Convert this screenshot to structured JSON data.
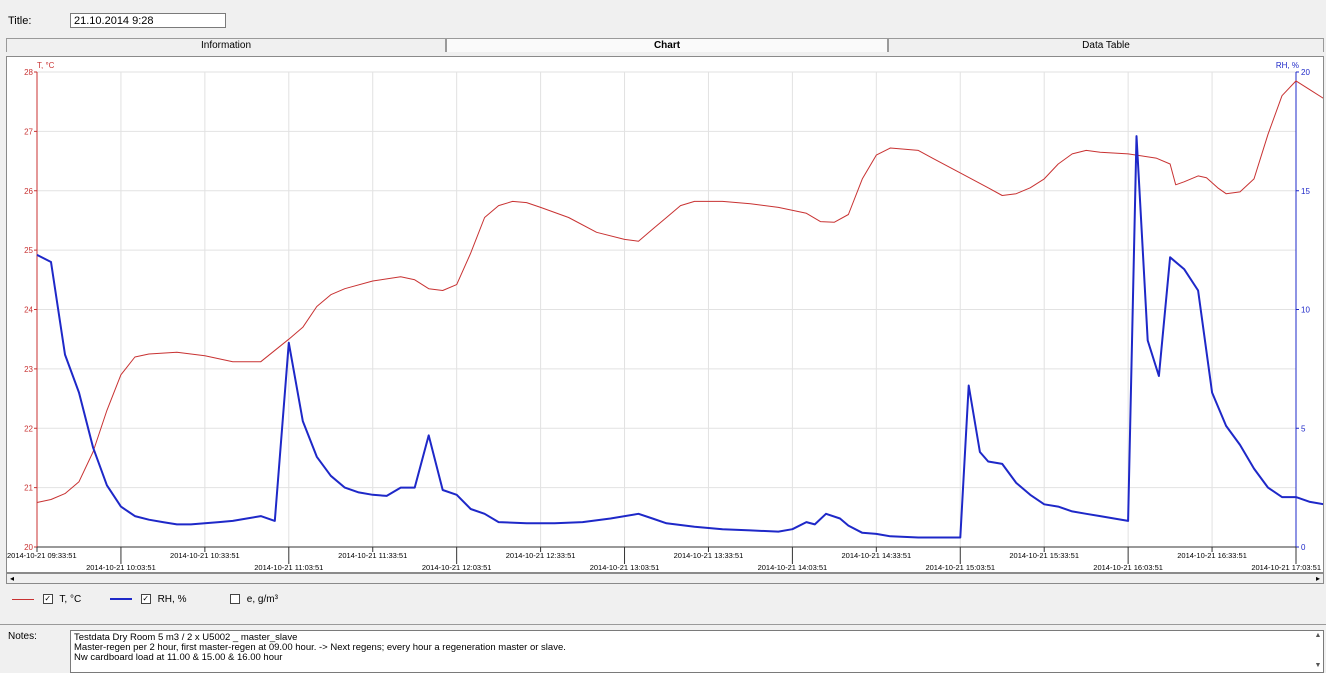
{
  "title": {
    "label": "Title:",
    "value": "21.10.2014 9:28"
  },
  "tabs": [
    {
      "label": "Information",
      "active": false
    },
    {
      "label": "Chart",
      "active": true
    },
    {
      "label": "Data Table",
      "active": false
    }
  ],
  "legend": {
    "items": [
      {
        "label": "T, °C",
        "checked": true,
        "color": "#c83232"
      },
      {
        "label": "RH, %",
        "checked": true,
        "color": "#1e28c8"
      },
      {
        "label": "e, g/m³",
        "checked": false,
        "color": ""
      }
    ]
  },
  "notes": {
    "label": "Notes:",
    "lines": [
      "Testdata Dry Room 5 m3 / 2 x U5002 _ master_slave",
      "Master-regen per 2 hour, first master-regen at 09.00 hour. -> Next regens; every hour a regeneration master or slave.",
      "Nw cardboard load at 11.00 & 15.00 & 16.00 hour"
    ]
  },
  "chart_data": {
    "type": "line",
    "left_axis_label": "T, °C",
    "right_axis_label": "RH, %",
    "left_ylim": [
      20,
      28
    ],
    "right_ylim": [
      0,
      20
    ],
    "left_ticks": [
      "20",
      "21",
      "22",
      "23",
      "24",
      "25",
      "26",
      "27",
      "28"
    ],
    "right_ticks": [
      "0",
      "5",
      "10",
      "15",
      "20"
    ],
    "x_labels_top": [
      "2014-10-21 09:33:51",
      "2014-10-21 10:33:51",
      "2014-10-21 11:33:51",
      "2014-10-21 12:33:51",
      "2014-10-21 13:33:51",
      "2014-10-21 14:33:51",
      "2014-10-21 15:33:51",
      "2014-10-21 16:33:51"
    ],
    "x_labels_bottom": [
      "2014-10-21 10:03:51",
      "2014-10-21 11:03:51",
      "2014-10-21 12:03:51",
      "2014-10-21 13:03:51",
      "2014-10-21 14:03:51",
      "2014-10-21 15:03:51",
      "2014-10-21 16:03:51",
      "2014-10-21 17:03:51"
    ],
    "x_range_min": [
      0,
      450
    ],
    "grid": true,
    "series": [
      {
        "name": "T, °C",
        "color": "#c83232",
        "axis": "left",
        "points": [
          [
            0,
            20.75
          ],
          [
            5,
            20.8
          ],
          [
            10,
            20.9
          ],
          [
            15,
            21.1
          ],
          [
            20,
            21.6
          ],
          [
            25,
            22.3
          ],
          [
            30,
            22.9
          ],
          [
            35,
            23.2
          ],
          [
            40,
            23.25
          ],
          [
            50,
            23.28
          ],
          [
            60,
            23.22
          ],
          [
            70,
            23.12
          ],
          [
            80,
            23.12
          ],
          [
            90,
            23.5
          ],
          [
            95,
            23.7
          ],
          [
            100,
            24.05
          ],
          [
            105,
            24.25
          ],
          [
            110,
            24.35
          ],
          [
            120,
            24.48
          ],
          [
            130,
            24.55
          ],
          [
            135,
            24.5
          ],
          [
            140,
            24.35
          ],
          [
            145,
            24.32
          ],
          [
            150,
            24.42
          ],
          [
            155,
            24.95
          ],
          [
            160,
            25.55
          ],
          [
            165,
            25.75
          ],
          [
            170,
            25.82
          ],
          [
            175,
            25.8
          ],
          [
            180,
            25.72
          ],
          [
            190,
            25.55
          ],
          [
            200,
            25.3
          ],
          [
            210,
            25.18
          ],
          [
            215,
            25.15
          ],
          [
            220,
            25.35
          ],
          [
            225,
            25.55
          ],
          [
            230,
            25.75
          ],
          [
            235,
            25.82
          ],
          [
            245,
            25.82
          ],
          [
            255,
            25.78
          ],
          [
            265,
            25.72
          ],
          [
            275,
            25.62
          ],
          [
            280,
            25.48
          ],
          [
            285,
            25.47
          ],
          [
            290,
            25.6
          ],
          [
            295,
            26.2
          ],
          [
            300,
            26.6
          ],
          [
            305,
            26.72
          ],
          [
            315,
            26.68
          ],
          [
            320,
            26.55
          ],
          [
            330,
            26.3
          ],
          [
            340,
            26.05
          ],
          [
            345,
            25.92
          ],
          [
            350,
            25.95
          ],
          [
            355,
            26.05
          ],
          [
            360,
            26.2
          ],
          [
            365,
            26.45
          ],
          [
            370,
            26.62
          ],
          [
            375,
            26.68
          ],
          [
            380,
            26.65
          ],
          [
            390,
            26.62
          ],
          [
            400,
            26.55
          ],
          [
            405,
            26.45
          ],
          [
            407,
            26.1
          ],
          [
            410,
            26.15
          ],
          [
            415,
            26.25
          ],
          [
            418,
            26.22
          ],
          [
            422,
            26.05
          ],
          [
            425,
            25.95
          ],
          [
            430,
            25.98
          ],
          [
            435,
            26.2
          ],
          [
            440,
            26.95
          ],
          [
            445,
            27.6
          ],
          [
            450,
            27.85
          ],
          [
            455,
            27.7
          ],
          [
            460,
            27.55
          ],
          [
            466,
            27.45
          ]
        ]
      },
      {
        "name": "RH, %",
        "color": "#1e28c8",
        "axis": "right",
        "points": [
          [
            0,
            12.3
          ],
          [
            5,
            12.0
          ],
          [
            10,
            8.1
          ],
          [
            15,
            6.5
          ],
          [
            20,
            4.2
          ],
          [
            25,
            2.6
          ],
          [
            30,
            1.7
          ],
          [
            35,
            1.3
          ],
          [
            40,
            1.15
          ],
          [
            45,
            1.05
          ],
          [
            50,
            0.95
          ],
          [
            55,
            0.95
          ],
          [
            60,
            1.0
          ],
          [
            65,
            1.05
          ],
          [
            70,
            1.1
          ],
          [
            75,
            1.2
          ],
          [
            80,
            1.3
          ],
          [
            85,
            1.1
          ],
          [
            90,
            8.6
          ],
          [
            95,
            5.3
          ],
          [
            100,
            3.8
          ],
          [
            105,
            3.0
          ],
          [
            110,
            2.5
          ],
          [
            115,
            2.3
          ],
          [
            120,
            2.2
          ],
          [
            125,
            2.15
          ],
          [
            130,
            2.5
          ],
          [
            135,
            2.5
          ],
          [
            140,
            4.7
          ],
          [
            145,
            2.4
          ],
          [
            150,
            2.2
          ],
          [
            155,
            1.6
          ],
          [
            160,
            1.4
          ],
          [
            165,
            1.05
          ],
          [
            175,
            1.0
          ],
          [
            185,
            1.0
          ],
          [
            195,
            1.05
          ],
          [
            205,
            1.2
          ],
          [
            215,
            1.4
          ],
          [
            220,
            1.2
          ],
          [
            225,
            1.0
          ],
          [
            235,
            0.85
          ],
          [
            245,
            0.75
          ],
          [
            255,
            0.7
          ],
          [
            265,
            0.65
          ],
          [
            270,
            0.75
          ],
          [
            275,
            1.05
          ],
          [
            278,
            0.95
          ],
          [
            282,
            1.4
          ],
          [
            287,
            1.2
          ],
          [
            290,
            0.9
          ],
          [
            295,
            0.6
          ],
          [
            300,
            0.55
          ],
          [
            305,
            0.45
          ],
          [
            315,
            0.4
          ],
          [
            325,
            0.4
          ],
          [
            330,
            0.4
          ],
          [
            333,
            6.8
          ],
          [
            337,
            4.0
          ],
          [
            340,
            3.6
          ],
          [
            345,
            3.5
          ],
          [
            350,
            2.7
          ],
          [
            355,
            2.2
          ],
          [
            360,
            1.8
          ],
          [
            365,
            1.7
          ],
          [
            370,
            1.5
          ],
          [
            375,
            1.4
          ],
          [
            380,
            1.3
          ],
          [
            385,
            1.2
          ],
          [
            390,
            1.1
          ],
          [
            393,
            17.3
          ],
          [
            397,
            8.7
          ],
          [
            401,
            7.2
          ],
          [
            405,
            12.2
          ],
          [
            410,
            11.7
          ],
          [
            415,
            10.8
          ],
          [
            420,
            6.5
          ],
          [
            425,
            5.1
          ],
          [
            430,
            4.3
          ],
          [
            435,
            3.3
          ],
          [
            440,
            2.5
          ],
          [
            445,
            2.1
          ],
          [
            450,
            2.1
          ],
          [
            455,
            1.9
          ],
          [
            460,
            1.8
          ]
        ]
      }
    ]
  }
}
